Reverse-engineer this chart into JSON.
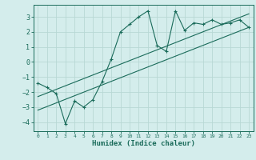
{
  "title": "",
  "xlabel": "Humidex (Indice chaleur)",
  "ylabel": "",
  "bg_color": "#d4edec",
  "line_color": "#1a6b5a",
  "grid_color": "#b8d8d5",
  "xlim": [
    -0.5,
    23.5
  ],
  "ylim": [
    -4.6,
    3.8
  ],
  "xticks": [
    0,
    1,
    2,
    3,
    4,
    5,
    6,
    7,
    8,
    9,
    10,
    11,
    12,
    13,
    14,
    15,
    16,
    17,
    18,
    19,
    20,
    21,
    22,
    23
  ],
  "yticks": [
    -4,
    -3,
    -2,
    -1,
    0,
    1,
    2,
    3
  ],
  "curve_x": [
    0,
    1,
    2,
    3,
    4,
    5,
    6,
    7,
    8,
    9,
    10,
    11,
    12,
    13,
    14,
    15,
    16,
    17,
    18,
    19,
    20,
    21,
    22,
    23
  ],
  "curve_y": [
    -1.4,
    -1.7,
    -2.1,
    -4.1,
    -2.6,
    -3.0,
    -2.5,
    -1.3,
    0.2,
    2.0,
    2.5,
    3.0,
    3.4,
    1.1,
    0.7,
    3.4,
    2.1,
    2.6,
    2.5,
    2.8,
    2.5,
    2.6,
    2.8,
    2.3
  ],
  "ref_line1_x": [
    0,
    23
  ],
  "ref_line1_y": [
    -3.2,
    2.3
  ],
  "ref_line2_x": [
    0,
    23
  ],
  "ref_line2_y": [
    -2.3,
    3.2
  ],
  "marker": "+"
}
